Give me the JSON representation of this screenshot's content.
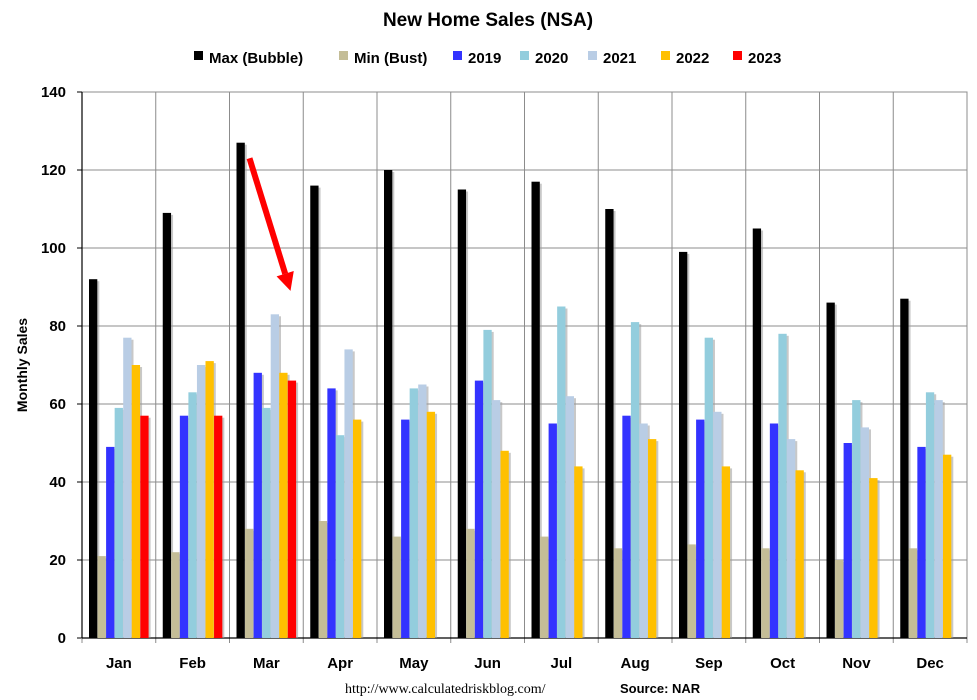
{
  "chart_data": {
    "type": "bar",
    "title": "New Home Sales (NSA)",
    "xlabel": "",
    "ylabel": "Monthly Sales",
    "ylim": [
      0,
      140
    ],
    "yticks": [
      0,
      20,
      40,
      60,
      80,
      100,
      120,
      140
    ],
    "grid": true,
    "legend_position": "top",
    "categories": [
      "Jan",
      "Feb",
      "Mar",
      "Apr",
      "May",
      "Jun",
      "Jul",
      "Aug",
      "Sep",
      "Oct",
      "Nov",
      "Dec"
    ],
    "series": [
      {
        "name": "Max (Bubble)",
        "color": "#000000",
        "values": [
          92,
          109,
          127,
          116,
          120,
          115,
          117,
          110,
          99,
          105,
          86,
          87
        ]
      },
      {
        "name": "Min (Bust)",
        "color": "#c4bd97",
        "values": [
          21,
          22,
          28,
          30,
          26,
          28,
          26,
          23,
          24,
          23,
          20,
          23
        ]
      },
      {
        "name": "2019",
        "color": "#3333ff",
        "values": [
          49,
          57,
          68,
          64,
          56,
          66,
          55,
          57,
          56,
          55,
          50,
          49
        ]
      },
      {
        "name": "2020",
        "color": "#93cddd",
        "values": [
          59,
          63,
          59,
          52,
          64,
          79,
          85,
          81,
          77,
          78,
          61,
          63
        ]
      },
      {
        "name": "2021",
        "color": "#b9cde5",
        "values": [
          77,
          70,
          83,
          74,
          65,
          61,
          62,
          55,
          58,
          51,
          54,
          61
        ]
      },
      {
        "name": "2022",
        "color": "#ffc000",
        "values": [
          70,
          71,
          68,
          56,
          58,
          48,
          44,
          51,
          44,
          43,
          41,
          47
        ]
      },
      {
        "name": "2023",
        "color": "#ff0000",
        "values": [
          57,
          57,
          66,
          null,
          null,
          null,
          null,
          null,
          null,
          null,
          null,
          null
        ]
      }
    ],
    "annotations": [
      {
        "type": "arrow",
        "color": "#ff0000",
        "from": {
          "x": "Mar",
          "y": 123
        },
        "to": {
          "x": "Mar",
          "y": 89
        }
      }
    ]
  },
  "footer": {
    "url": "http://www.calculatedriskblog.com/",
    "source": "Source: NAR"
  }
}
